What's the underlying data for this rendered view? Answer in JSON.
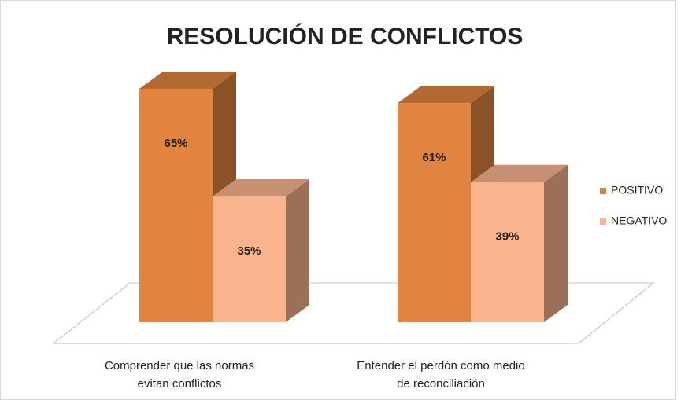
{
  "chart_data": {
    "type": "bar",
    "title": "RESOLUCIÓN DE CONFLICTOS",
    "categories": [
      [
        "Comprender que las normas",
        "evitan conflictos"
      ],
      [
        "Entender el perdón como medio",
        "de reconciliación"
      ]
    ],
    "series": [
      {
        "name": "POSITIVO",
        "color": "#e0843f",
        "values": [
          65,
          61
        ],
        "value_labels": [
          "65%",
          "61%"
        ]
      },
      {
        "name": "NEGATIVO",
        "color": "#f9b48e",
        "values": [
          35,
          39
        ],
        "value_labels": [
          "35%",
          "39%"
        ]
      }
    ],
    "legend": "right"
  }
}
